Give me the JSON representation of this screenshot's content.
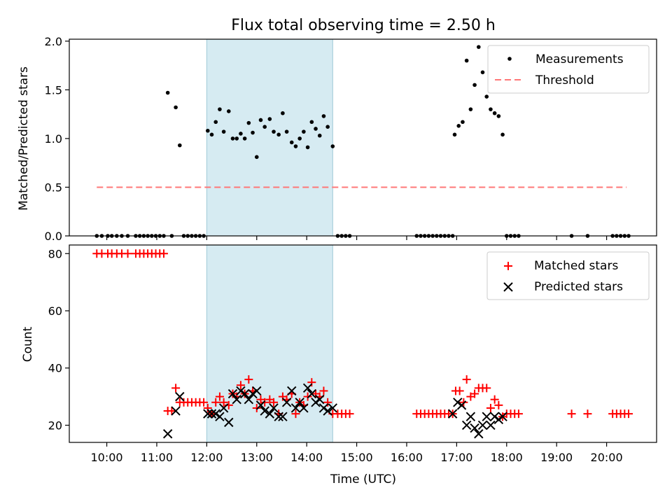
{
  "chart_data": [
    {
      "type": "scatter",
      "title": "Flux total observing time = 2.50 h",
      "ylabel": "Matched/Predicted stars",
      "xlabel": "",
      "xlim": [
        9.25,
        21.0
      ],
      "ylim": [
        0,
        2.02
      ],
      "yticks": [
        0.0,
        0.5,
        1.0,
        1.5,
        2.0
      ],
      "ytick_labels": [
        "0.0",
        "0.5",
        "1.0",
        "1.5",
        "2.0"
      ],
      "xticks": [
        10,
        11,
        12,
        13,
        14,
        15,
        16,
        17,
        18,
        19,
        20
      ],
      "highlight_span": [
        12.0,
        14.52
      ],
      "threshold": {
        "name": "Threshold",
        "y": 0.5,
        "x": [
          9.8,
          20.4
        ],
        "color": "#ff7777",
        "style": "dashed"
      },
      "legend": {
        "location": "upper right",
        "entries": [
          "Measurements",
          "Threshold"
        ]
      },
      "series": [
        {
          "name": "Measurements",
          "color": "#000000",
          "marker": "dot",
          "points": [
            [
              9.8,
              0
            ],
            [
              9.9,
              0
            ],
            [
              10.02,
              0
            ],
            [
              10.1,
              0
            ],
            [
              10.2,
              0
            ],
            [
              10.3,
              0
            ],
            [
              10.42,
              0
            ],
            [
              10.58,
              0
            ],
            [
              10.66,
              0
            ],
            [
              10.74,
              0
            ],
            [
              10.82,
              0
            ],
            [
              10.9,
              0
            ],
            [
              10.98,
              0
            ],
            [
              11.06,
              0
            ],
            [
              11.14,
              0
            ],
            [
              11.22,
              1.47
            ],
            [
              11.3,
              0
            ],
            [
              11.38,
              1.32
            ],
            [
              11.46,
              0.93
            ],
            [
              11.54,
              0
            ],
            [
              11.62,
              0
            ],
            [
              11.7,
              0
            ],
            [
              11.78,
              0
            ],
            [
              11.86,
              0
            ],
            [
              11.94,
              0
            ],
            [
              12.02,
              1.08
            ],
            [
              12.1,
              1.04
            ],
            [
              12.18,
              1.17
            ],
            [
              12.26,
              1.3
            ],
            [
              12.34,
              1.07
            ],
            [
              12.44,
              1.28
            ],
            [
              12.52,
              1.0
            ],
            [
              12.6,
              1.0
            ],
            [
              12.68,
              1.05
            ],
            [
              12.76,
              1.0
            ],
            [
              12.84,
              1.16
            ],
            [
              12.92,
              1.06
            ],
            [
              13.0,
              0.81
            ],
            [
              13.08,
              1.19
            ],
            [
              13.16,
              1.12
            ],
            [
              13.26,
              1.2
            ],
            [
              13.34,
              1.07
            ],
            [
              13.44,
              1.04
            ],
            [
              13.52,
              1.26
            ],
            [
              13.6,
              1.07
            ],
            [
              13.7,
              0.96
            ],
            [
              13.78,
              0.92
            ],
            [
              13.86,
              1.0
            ],
            [
              13.94,
              1.07
            ],
            [
              14.02,
              0.91
            ],
            [
              14.1,
              1.17
            ],
            [
              14.18,
              1.1
            ],
            [
              14.26,
              1.03
            ],
            [
              14.34,
              1.23
            ],
            [
              14.42,
              1.12
            ],
            [
              14.52,
              0.92
            ],
            [
              14.62,
              0
            ],
            [
              14.7,
              0
            ],
            [
              14.78,
              0
            ],
            [
              14.86,
              0
            ],
            [
              16.2,
              0
            ],
            [
              16.28,
              0
            ],
            [
              16.36,
              0
            ],
            [
              16.44,
              0
            ],
            [
              16.52,
              0
            ],
            [
              16.6,
              0
            ],
            [
              16.68,
              0
            ],
            [
              16.76,
              0
            ],
            [
              16.84,
              0
            ],
            [
              16.92,
              0
            ],
            [
              16.96,
              1.04
            ],
            [
              17.04,
              1.13
            ],
            [
              17.12,
              1.17
            ],
            [
              17.2,
              1.8
            ],
            [
              17.28,
              1.3
            ],
            [
              17.36,
              1.55
            ],
            [
              17.44,
              1.94
            ],
            [
              17.52,
              1.68
            ],
            [
              17.6,
              1.43
            ],
            [
              17.68,
              1.3
            ],
            [
              17.76,
              1.26
            ],
            [
              17.84,
              1.23
            ],
            [
              17.92,
              1.04
            ],
            [
              18.0,
              0
            ],
            [
              18.08,
              0
            ],
            [
              18.16,
              0
            ],
            [
              18.24,
              0
            ],
            [
              19.3,
              0
            ],
            [
              19.62,
              0
            ],
            [
              20.12,
              0
            ],
            [
              20.2,
              0
            ],
            [
              20.28,
              0
            ],
            [
              20.36,
              0
            ],
            [
              20.44,
              0
            ]
          ]
        }
      ]
    },
    {
      "type": "scatter",
      "title": "",
      "ylabel": "Count",
      "xlabel": "Time (UTC)",
      "xlim": [
        9.25,
        21.0
      ],
      "ylim": [
        14,
        83
      ],
      "yticks": [
        20,
        40,
        60,
        80
      ],
      "ytick_labels": [
        "20",
        "40",
        "60",
        "80"
      ],
      "xticks": [
        10,
        11,
        12,
        13,
        14,
        15,
        16,
        17,
        18,
        19,
        20
      ],
      "xtick_labels": [
        "10:00",
        "11:00",
        "12:00",
        "13:00",
        "14:00",
        "15:00",
        "16:00",
        "17:00",
        "18:00",
        "19:00",
        "20:00"
      ],
      "highlight_span": [
        12.0,
        14.52
      ],
      "legend": {
        "location": "upper right",
        "entries": [
          "Matched stars",
          "Predicted stars"
        ]
      },
      "series": [
        {
          "name": "Matched stars",
          "color": "#ff0000",
          "marker": "plus",
          "points": [
            [
              9.8,
              80
            ],
            [
              9.9,
              80
            ],
            [
              10.02,
              80
            ],
            [
              10.1,
              80
            ],
            [
              10.2,
              80
            ],
            [
              10.3,
              80
            ],
            [
              10.42,
              80
            ],
            [
              10.58,
              80
            ],
            [
              10.66,
              80
            ],
            [
              10.74,
              80
            ],
            [
              10.82,
              80
            ],
            [
              10.9,
              80
            ],
            [
              10.98,
              80
            ],
            [
              11.06,
              80
            ],
            [
              11.14,
              80
            ],
            [
              11.22,
              25
            ],
            [
              11.3,
              25
            ],
            [
              11.38,
              33
            ],
            [
              11.46,
              28
            ],
            [
              11.54,
              28
            ],
            [
              11.62,
              28
            ],
            [
              11.7,
              28
            ],
            [
              11.78,
              28
            ],
            [
              11.86,
              28
            ],
            [
              11.94,
              28
            ],
            [
              12.02,
              26
            ],
            [
              12.1,
              24
            ],
            [
              12.18,
              28
            ],
            [
              12.26,
              30
            ],
            [
              12.34,
              28
            ],
            [
              12.44,
              27
            ],
            [
              12.52,
              31
            ],
            [
              12.6,
              30
            ],
            [
              12.68,
              34
            ],
            [
              12.76,
              31
            ],
            [
              12.84,
              36
            ],
            [
              12.92,
              32
            ],
            [
              13.0,
              26
            ],
            [
              13.08,
              29
            ],
            [
              13.16,
              28
            ],
            [
              13.26,
              29
            ],
            [
              13.34,
              28
            ],
            [
              13.44,
              24
            ],
            [
              13.52,
              30
            ],
            [
              13.6,
              29
            ],
            [
              13.7,
              31
            ],
            [
              13.78,
              24
            ],
            [
              13.86,
              28
            ],
            [
              13.94,
              27
            ],
            [
              14.02,
              30
            ],
            [
              14.1,
              35
            ],
            [
              14.18,
              31
            ],
            [
              14.26,
              30
            ],
            [
              14.34,
              32
            ],
            [
              14.42,
              28
            ],
            [
              14.52,
              24
            ],
            [
              14.62,
              24
            ],
            [
              14.7,
              24
            ],
            [
              14.78,
              24
            ],
            [
              14.86,
              24
            ],
            [
              16.2,
              24
            ],
            [
              16.28,
              24
            ],
            [
              16.36,
              24
            ],
            [
              16.44,
              24
            ],
            [
              16.52,
              24
            ],
            [
              16.6,
              24
            ],
            [
              16.68,
              24
            ],
            [
              16.76,
              24
            ],
            [
              16.84,
              24
            ],
            [
              16.92,
              24
            ],
            [
              16.98,
              32
            ],
            [
              17.06,
              32
            ],
            [
              17.14,
              28
            ],
            [
              17.2,
              36
            ],
            [
              17.28,
              30
            ],
            [
              17.36,
              31
            ],
            [
              17.44,
              33
            ],
            [
              17.52,
              33
            ],
            [
              17.6,
              33
            ],
            [
              17.68,
              26
            ],
            [
              17.76,
              29
            ],
            [
              17.84,
              27
            ],
            [
              17.92,
              23
            ],
            [
              18.0,
              24
            ],
            [
              18.08,
              24
            ],
            [
              18.16,
              24
            ],
            [
              18.24,
              24
            ],
            [
              19.3,
              24
            ],
            [
              19.62,
              24
            ],
            [
              20.12,
              24
            ],
            [
              20.2,
              24
            ],
            [
              20.28,
              24
            ],
            [
              20.36,
              24
            ],
            [
              20.44,
              24
            ]
          ]
        },
        {
          "name": "Predicted stars",
          "color": "#000000",
          "marker": "x",
          "points": [
            [
              11.22,
              17
            ],
            [
              11.38,
              25
            ],
            [
              11.46,
              30
            ],
            [
              12.02,
              24
            ],
            [
              12.1,
              24
            ],
            [
              12.18,
              24
            ],
            [
              12.26,
              23
            ],
            [
              12.34,
              26
            ],
            [
              12.44,
              21
            ],
            [
              12.52,
              31
            ],
            [
              12.6,
              29
            ],
            [
              12.68,
              32
            ],
            [
              12.76,
              31
            ],
            [
              12.84,
              29
            ],
            [
              12.92,
              31
            ],
            [
              13.0,
              32
            ],
            [
              13.08,
              27
            ],
            [
              13.16,
              25
            ],
            [
              13.26,
              24
            ],
            [
              13.34,
              26
            ],
            [
              13.44,
              23
            ],
            [
              13.52,
              23
            ],
            [
              13.6,
              28
            ],
            [
              13.7,
              32
            ],
            [
              13.78,
              26
            ],
            [
              13.86,
              28
            ],
            [
              13.94,
              26
            ],
            [
              14.02,
              33
            ],
            [
              14.1,
              31
            ],
            [
              14.18,
              28
            ],
            [
              14.26,
              29
            ],
            [
              14.34,
              26
            ],
            [
              14.42,
              25
            ],
            [
              14.52,
              26
            ],
            [
              16.92,
              24
            ],
            [
              17.02,
              28
            ],
            [
              17.1,
              27
            ],
            [
              17.2,
              20
            ],
            [
              17.28,
              23
            ],
            [
              17.36,
              19
            ],
            [
              17.44,
              17
            ],
            [
              17.52,
              20
            ],
            [
              17.6,
              23
            ],
            [
              17.68,
              20
            ],
            [
              17.76,
              23
            ],
            [
              17.84,
              22
            ],
            [
              17.92,
              23
            ]
          ]
        }
      ]
    }
  ]
}
